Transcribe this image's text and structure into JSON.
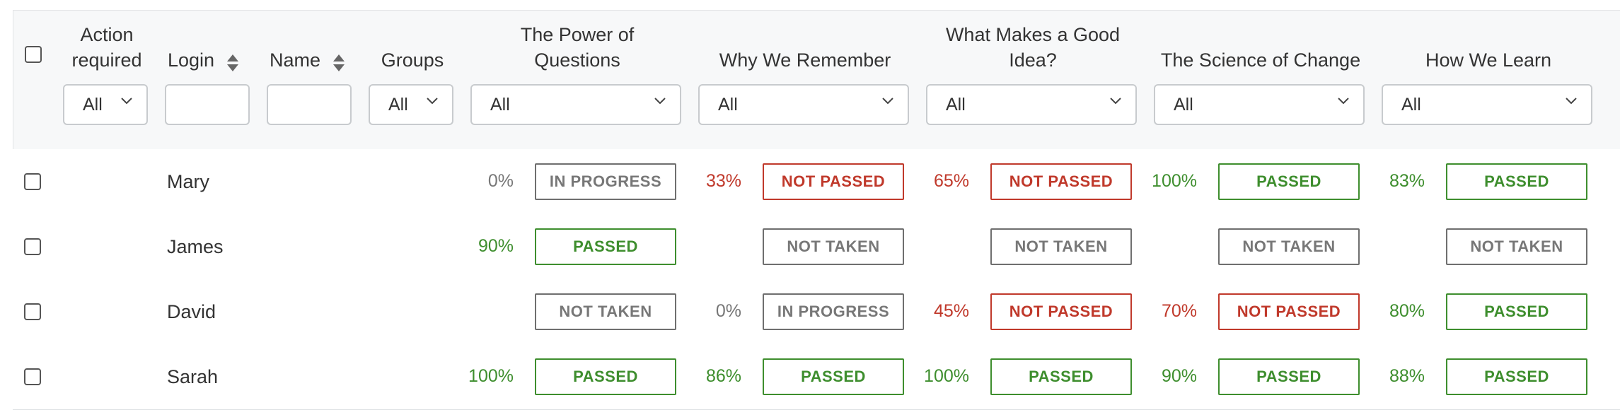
{
  "columns": {
    "action_required": "Action required",
    "login": "Login",
    "name": "Name",
    "groups": "Groups",
    "course1": "The Power of Questions",
    "course2": "Why We Remember",
    "course3": "What Makes a Good Idea?",
    "course4": "The Science of Change",
    "course5": "How We Learn"
  },
  "filters": {
    "action_required": "All",
    "login": "",
    "name": "",
    "groups": "All",
    "course1": "All",
    "course2": "All",
    "course3": "All",
    "course4": "All",
    "course5": "All"
  },
  "status_colors": {
    "passed": "#3e8e2e",
    "not_passed": "#c0392b",
    "neutral": "#777777"
  },
  "rows": [
    {
      "login": "Mary",
      "results": [
        {
          "pct": "0%",
          "status": "IN PROGRESS"
        },
        {
          "pct": "33%",
          "status": "NOT PASSED"
        },
        {
          "pct": "65%",
          "status": "NOT PASSED"
        },
        {
          "pct": "100%",
          "status": "PASSED"
        },
        {
          "pct": "83%",
          "status": "PASSED"
        }
      ]
    },
    {
      "login": "James",
      "results": [
        {
          "pct": "90%",
          "status": "PASSED"
        },
        {
          "pct": "",
          "status": "NOT TAKEN"
        },
        {
          "pct": "",
          "status": "NOT TAKEN"
        },
        {
          "pct": "",
          "status": "NOT TAKEN"
        },
        {
          "pct": "",
          "status": "NOT TAKEN"
        }
      ]
    },
    {
      "login": "David",
      "results": [
        {
          "pct": "",
          "status": "NOT TAKEN"
        },
        {
          "pct": "0%",
          "status": "IN PROGRESS"
        },
        {
          "pct": "45%",
          "status": "NOT PASSED"
        },
        {
          "pct": "70%",
          "status": "NOT PASSED"
        },
        {
          "pct": "80%",
          "status": "PASSED"
        }
      ]
    },
    {
      "login": "Sarah",
      "results": [
        {
          "pct": "100%",
          "status": "PASSED"
        },
        {
          "pct": "86%",
          "status": "PASSED"
        },
        {
          "pct": "100%",
          "status": "PASSED"
        },
        {
          "pct": "90%",
          "status": "PASSED"
        },
        {
          "pct": "88%",
          "status": "PASSED"
        }
      ]
    }
  ]
}
